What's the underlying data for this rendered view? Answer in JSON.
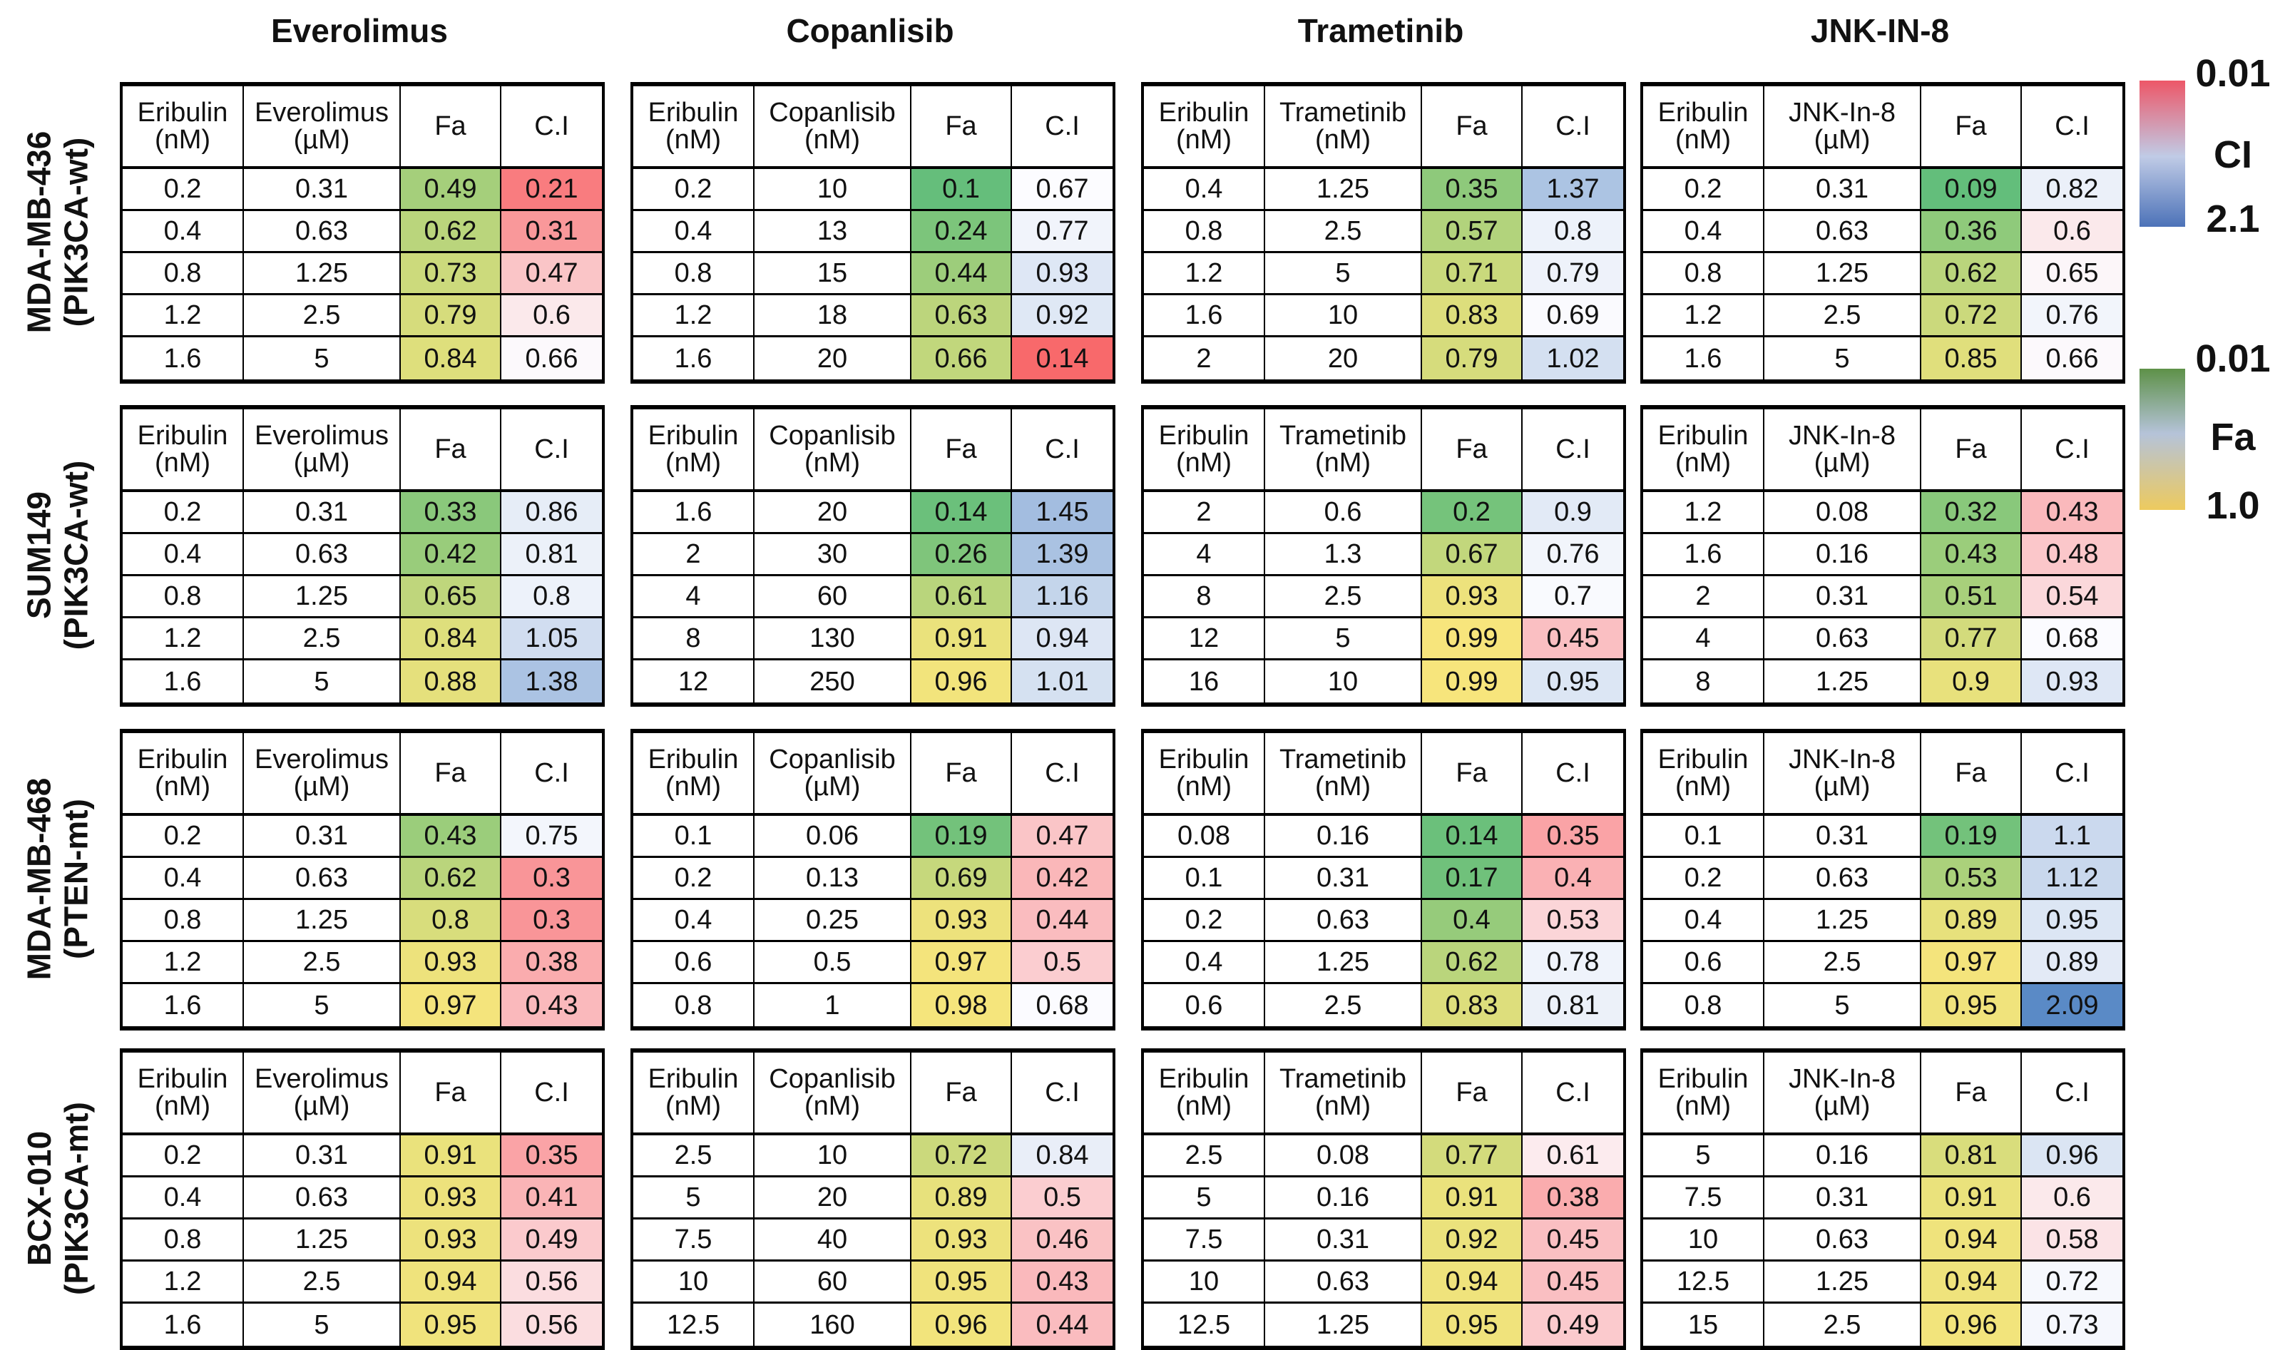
{
  "figure": {
    "drug_columns": [
      "Everolimus",
      "Copanlisib",
      "Trametinib",
      "JNK-IN-8"
    ],
    "cell_lines": [
      {
        "name": "MDA-MB-436",
        "genotype": "(PIK3CA-wt)"
      },
      {
        "name": "SUM149",
        "genotype": "(PIK3CA-wt)"
      },
      {
        "name": "MDA-MB-468",
        "genotype": "(PTEN-mt)"
      },
      {
        "name": "BCX-010",
        "genotype": "(PIK3CA-mt)"
      }
    ]
  },
  "legends": {
    "ci": {
      "label": "CI",
      "top_value": "0.01",
      "bottom_value": "2.1",
      "top_color": "#ED5768",
      "mid_color": "#C0CBE6",
      "bottom_color": "#4C72B8"
    },
    "fa": {
      "label": "Fa",
      "top_value": "0.01",
      "bottom_value": "1.0",
      "top_color": "#5E9148",
      "mid_color": "#B5C3D9",
      "bottom_color": "#EDCA5E"
    }
  },
  "color_scales": {
    "fa": {
      "min": 0.09,
      "max": 0.99,
      "min_color": "#63BE7B",
      "max_color": "#F7E57C"
    },
    "ci": {
      "min": 0.14,
      "mid": 0.67,
      "max": 2.09,
      "min_color": "#F8696B",
      "mid_color": "#FCFCFF",
      "max_color": "#5A8AC6"
    }
  },
  "chart_data": {
    "type": "heatmap",
    "description": "Eribulin drug-combination tables: fraction affected (Fa) and combination index (C.I) per dose pair, for 4 cell lines x 4 partner drugs",
    "grid": [
      [
        {
          "dose_header": {
            "line1": "Eribulin",
            "line2": "(nM)"
          },
          "drug_header": {
            "line1": "Everolimus",
            "line2": "(µM)"
          },
          "fa_header": "Fa",
          "ci_header": "C.I",
          "rows": [
            [
              "0.2",
              "0.31",
              "0.49",
              "0.21"
            ],
            [
              "0.4",
              "0.63",
              "0.62",
              "0.31"
            ],
            [
              "0.8",
              "1.25",
              "0.73",
              "0.47"
            ],
            [
              "1.2",
              "2.5",
              "0.79",
              "0.6"
            ],
            [
              "1.6",
              "5",
              "0.84",
              "0.66"
            ]
          ]
        },
        {
          "dose_header": {
            "line1": "Eribulin",
            "line2": "(nM)"
          },
          "drug_header": {
            "line1": "Copanlisib",
            "line2": "(nM)"
          },
          "fa_header": "Fa",
          "ci_header": "C.I",
          "rows": [
            [
              "0.2",
              "10",
              "0.1",
              "0.67"
            ],
            [
              "0.4",
              "13",
              "0.24",
              "0.77"
            ],
            [
              "0.8",
              "15",
              "0.44",
              "0.93"
            ],
            [
              "1.2",
              "18",
              "0.63",
              "0.92"
            ],
            [
              "1.6",
              "20",
              "0.66",
              "0.14"
            ]
          ]
        },
        {
          "dose_header": {
            "line1": "Eribulin",
            "line2": "(nM)"
          },
          "drug_header": {
            "line1": "Trametinib",
            "line2": "(nM)"
          },
          "fa_header": "Fa",
          "ci_header": "C.I",
          "rows": [
            [
              "0.4",
              "1.25",
              "0.35",
              "1.37"
            ],
            [
              "0.8",
              "2.5",
              "0.57",
              "0.8"
            ],
            [
              "1.2",
              "5",
              "0.71",
              "0.79"
            ],
            [
              "1.6",
              "10",
              "0.83",
              "0.69"
            ],
            [
              "2",
              "20",
              "0.79",
              "1.02"
            ]
          ]
        },
        {
          "dose_header": {
            "line1": "Eribulin",
            "line2": "(nM)"
          },
          "drug_header": {
            "line1": "JNK-In-8",
            "line2": "(µM)"
          },
          "fa_header": "Fa",
          "ci_header": "C.I",
          "rows": [
            [
              "0.2",
              "0.31",
              "0.09",
              "0.82"
            ],
            [
              "0.4",
              "0.63",
              "0.36",
              "0.6"
            ],
            [
              "0.8",
              "1.25",
              "0.62",
              "0.65"
            ],
            [
              "1.2",
              "2.5",
              "0.72",
              "0.76"
            ],
            [
              "1.6",
              "5",
              "0.85",
              "0.66"
            ]
          ]
        }
      ],
      [
        {
          "dose_header": {
            "line1": "Eribulin",
            "line2": "(nM)"
          },
          "drug_header": {
            "line1": "Everolimus",
            "line2": "(µM)"
          },
          "fa_header": "Fa",
          "ci_header": "C.I",
          "rows": [
            [
              "0.2",
              "0.31",
              "0.33",
              "0.86"
            ],
            [
              "0.4",
              "0.63",
              "0.42",
              "0.81"
            ],
            [
              "0.8",
              "1.25",
              "0.65",
              "0.8"
            ],
            [
              "1.2",
              "2.5",
              "0.84",
              "1.05"
            ],
            [
              "1.6",
              "5",
              "0.88",
              "1.38"
            ]
          ]
        },
        {
          "dose_header": {
            "line1": "Eribulin",
            "line2": "(nM)"
          },
          "drug_header": {
            "line1": "Copanlisib",
            "line2": "(nM)"
          },
          "fa_header": "Fa",
          "ci_header": "C.I",
          "rows": [
            [
              "1.6",
              "20",
              "0.14",
              "1.45"
            ],
            [
              "2",
              "30",
              "0.26",
              "1.39"
            ],
            [
              "4",
              "60",
              "0.61",
              "1.16"
            ],
            [
              "8",
              "130",
              "0.91",
              "0.94"
            ],
            [
              "12",
              "250",
              "0.96",
              "1.01"
            ]
          ]
        },
        {
          "dose_header": {
            "line1": "Eribulin",
            "line2": "(nM)"
          },
          "drug_header": {
            "line1": "Trametinib",
            "line2": "(nM)"
          },
          "fa_header": "Fa",
          "ci_header": "C.I",
          "rows": [
            [
              "2",
              "0.6",
              "0.2",
              "0.9"
            ],
            [
              "4",
              "1.3",
              "0.67",
              "0.76"
            ],
            [
              "8",
              "2.5",
              "0.93",
              "0.7"
            ],
            [
              "12",
              "5",
              "0.99",
              "0.45"
            ],
            [
              "16",
              "10",
              "0.99",
              "0.95"
            ]
          ]
        },
        {
          "dose_header": {
            "line1": "Eribulin",
            "line2": "(nM)"
          },
          "drug_header": {
            "line1": "JNK-In-8",
            "line2": "(µM)"
          },
          "fa_header": "Fa",
          "ci_header": "C.I",
          "rows": [
            [
              "1.2",
              "0.08",
              "0.32",
              "0.43"
            ],
            [
              "1.6",
              "0.16",
              "0.43",
              "0.48"
            ],
            [
              "2",
              "0.31",
              "0.51",
              "0.54"
            ],
            [
              "4",
              "0.63",
              "0.77",
              "0.68"
            ],
            [
              "8",
              "1.25",
              "0.9",
              "0.93"
            ]
          ]
        }
      ],
      [
        {
          "dose_header": {
            "line1": "Eribulin",
            "line2": "(nM)"
          },
          "drug_header": {
            "line1": "Everolimus",
            "line2": "(µM)"
          },
          "fa_header": "Fa",
          "ci_header": "C.I",
          "rows": [
            [
              "0.2",
              "0.31",
              "0.43",
              "0.75"
            ],
            [
              "0.4",
              "0.63",
              "0.62",
              "0.3"
            ],
            [
              "0.8",
              "1.25",
              "0.8",
              "0.3"
            ],
            [
              "1.2",
              "2.5",
              "0.93",
              "0.38"
            ],
            [
              "1.6",
              "5",
              "0.97",
              "0.43"
            ]
          ]
        },
        {
          "dose_header": {
            "line1": "Eribulin",
            "line2": "(nM)"
          },
          "drug_header": {
            "line1": "Copanlisib",
            "line2": "(µM)"
          },
          "fa_header": "Fa",
          "ci_header": "C.I",
          "rows": [
            [
              "0.1",
              "0.06",
              "0.19",
              "0.47"
            ],
            [
              "0.2",
              "0.13",
              "0.69",
              "0.42"
            ],
            [
              "0.4",
              "0.25",
              "0.93",
              "0.44"
            ],
            [
              "0.6",
              "0.5",
              "0.97",
              "0.5"
            ],
            [
              "0.8",
              "1",
              "0.98",
              "0.68"
            ]
          ]
        },
        {
          "dose_header": {
            "line1": "Eribulin",
            "line2": "(nM)"
          },
          "drug_header": {
            "line1": "Trametinib",
            "line2": "(nM)"
          },
          "fa_header": "Fa",
          "ci_header": "C.I",
          "rows": [
            [
              "0.08",
              "0.16",
              "0.14",
              "0.35"
            ],
            [
              "0.1",
              "0.31",
              "0.17",
              "0.4"
            ],
            [
              "0.2",
              "0.63",
              "0.4",
              "0.53"
            ],
            [
              "0.4",
              "1.25",
              "0.62",
              "0.78"
            ],
            [
              "0.6",
              "2.5",
              "0.83",
              "0.81"
            ]
          ]
        },
        {
          "dose_header": {
            "line1": "Eribulin",
            "line2": "(nM)"
          },
          "drug_header": {
            "line1": "JNK-In-8",
            "line2": "(µM)"
          },
          "fa_header": "Fa",
          "ci_header": "C.I",
          "rows": [
            [
              "0.1",
              "0.31",
              "0.19",
              "1.1"
            ],
            [
              "0.2",
              "0.63",
              "0.53",
              "1.12"
            ],
            [
              "0.4",
              "1.25",
              "0.89",
              "0.95"
            ],
            [
              "0.6",
              "2.5",
              "0.97",
              "0.89"
            ],
            [
              "0.8",
              "5",
              "0.95",
              "2.09"
            ]
          ]
        }
      ],
      [
        {
          "dose_header": {
            "line1": "Eribulin",
            "line2": "(nM)"
          },
          "drug_header": {
            "line1": "Everolimus",
            "line2": "(µM)"
          },
          "fa_header": "Fa",
          "ci_header": "C.I",
          "rows": [
            [
              "0.2",
              "0.31",
              "0.91",
              "0.35"
            ],
            [
              "0.4",
              "0.63",
              "0.93",
              "0.41"
            ],
            [
              "0.8",
              "1.25",
              "0.93",
              "0.49"
            ],
            [
              "1.2",
              "2.5",
              "0.94",
              "0.56"
            ],
            [
              "1.6",
              "5",
              "0.95",
              "0.56"
            ]
          ]
        },
        {
          "dose_header": {
            "line1": "Eribulin",
            "line2": "(nM)"
          },
          "drug_header": {
            "line1": "Copanlisib",
            "line2": "(nM)"
          },
          "fa_header": "Fa",
          "ci_header": "C.I",
          "rows": [
            [
              "2.5",
              "10",
              "0.72",
              "0.84"
            ],
            [
              "5",
              "20",
              "0.89",
              "0.5"
            ],
            [
              "7.5",
              "40",
              "0.93",
              "0.46"
            ],
            [
              "10",
              "60",
              "0.95",
              "0.43"
            ],
            [
              "12.5",
              "160",
              "0.96",
              "0.44"
            ]
          ]
        },
        {
          "dose_header": {
            "line1": "Eribulin",
            "line2": "(nM)"
          },
          "drug_header": {
            "line1": "Trametinib",
            "line2": "(nM)"
          },
          "fa_header": "Fa",
          "ci_header": "C.I",
          "rows": [
            [
              "2.5",
              "0.08",
              "0.77",
              "0.61"
            ],
            [
              "5",
              "0.16",
              "0.91",
              "0.38"
            ],
            [
              "7.5",
              "0.31",
              "0.92",
              "0.45"
            ],
            [
              "10",
              "0.63",
              "0.94",
              "0.45"
            ],
            [
              "12.5",
              "1.25",
              "0.95",
              "0.49"
            ]
          ]
        },
        {
          "dose_header": {
            "line1": "Eribulin",
            "line2": "(nM)"
          },
          "drug_header": {
            "line1": "JNK-In-8",
            "line2": "(µM)"
          },
          "fa_header": "Fa",
          "ci_header": "C.I",
          "rows": [
            [
              "5",
              "0.16",
              "0.81",
              "0.96"
            ],
            [
              "7.5",
              "0.31",
              "0.91",
              "0.6"
            ],
            [
              "10",
              "0.63",
              "0.94",
              "0.58"
            ],
            [
              "12.5",
              "1.25",
              "0.94",
              "0.72"
            ],
            [
              "15",
              "2.5",
              "0.96",
              "0.73"
            ]
          ]
        }
      ]
    ]
  }
}
